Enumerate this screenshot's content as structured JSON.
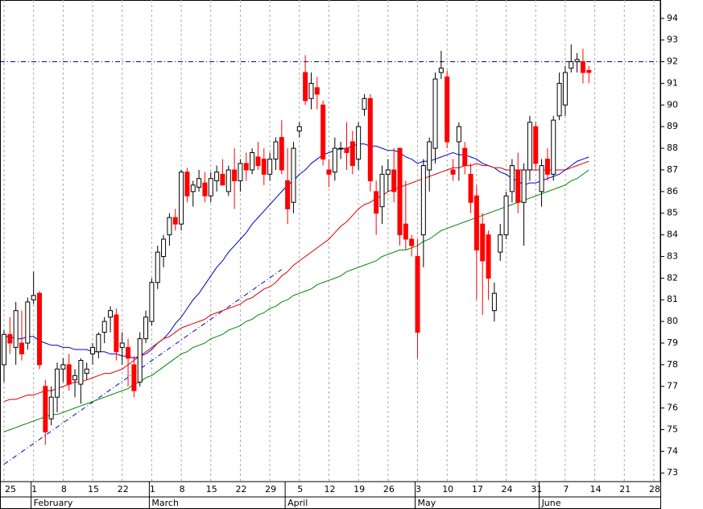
{
  "chart_data": {
    "type": "candlestick",
    "categories": [
      "25",
      null,
      null,
      null,
      null,
      "1",
      null,
      null,
      null,
      null,
      "8",
      null,
      null,
      null,
      null,
      "15",
      null,
      null,
      null,
      null,
      "22",
      null,
      null,
      null,
      null,
      "1",
      null,
      null,
      null,
      null,
      "8",
      null,
      null,
      null,
      null,
      "15",
      null,
      null,
      null,
      null,
      "22",
      null,
      null,
      null,
      null,
      "29",
      null,
      null,
      null,
      null,
      "5",
      null,
      null,
      null,
      null,
      "12",
      null,
      null,
      null,
      null,
      "19",
      null,
      null,
      null,
      null,
      "26",
      null,
      null,
      null,
      null,
      "3",
      null,
      null,
      null,
      null,
      "10",
      null,
      null,
      null,
      null,
      "17",
      null,
      null,
      null,
      null,
      "24",
      null,
      null,
      null,
      null,
      "31",
      null,
      null,
      null,
      null,
      "7",
      null,
      null,
      null,
      null,
      "14",
      null,
      null,
      null,
      null,
      "21",
      null,
      null,
      null,
      null,
      "28"
    ],
    "months": [
      null,
      null,
      null,
      null,
      null,
      "February",
      null,
      null,
      null,
      null,
      null,
      null,
      null,
      null,
      null,
      null,
      null,
      null,
      null,
      null,
      null,
      null,
      null,
      null,
      null,
      "March",
      null,
      null,
      null,
      null,
      null,
      null,
      null,
      null,
      null,
      null,
      null,
      null,
      null,
      null,
      null,
      null,
      null,
      null,
      null,
      null,
      null,
      null,
      "April",
      null,
      null,
      null,
      null,
      null,
      null,
      null,
      null,
      null,
      null,
      null,
      null,
      null,
      null,
      null,
      null,
      null,
      null,
      null,
      null,
      null,
      "May",
      null,
      null,
      null,
      null,
      null,
      null,
      null,
      null,
      null,
      null,
      null,
      null,
      null,
      null,
      null,
      null,
      null,
      null,
      null,
      null,
      "June",
      null,
      null,
      null,
      null,
      null,
      null,
      null,
      null,
      null,
      null,
      null,
      null,
      null,
      null,
      null,
      null,
      null,
      null,
      null
    ],
    "open": [
      78,
      79.4,
      78.8,
      79,
      79.0,
      81,
      81.3,
      77.0,
      75.5,
      76.5,
      77.8,
      78.0,
      77.3,
      77.1,
      77.6,
      78.5,
      78.6,
      79.5,
      80.2,
      80.3,
      78.8,
      78.8,
      78.0,
      77.2,
      79.2,
      80.0,
      81.8,
      83.0,
      84.0,
      84.8,
      84.5,
      86.9,
      86.0,
      86.2,
      86.4,
      85.8,
      86.5,
      86.8,
      86.0,
      87.0,
      86.5,
      87.3,
      87.0,
      87.6,
      87.5,
      86.8,
      87.5,
      88.5,
      86.5,
      85.5,
      88.8,
      91.5,
      90.3,
      90.8,
      90.0,
      87.0,
      86.9,
      88.0,
      88.0,
      88.3,
      87.5,
      89.8,
      90.3,
      86.0,
      85.3,
      86.8,
      87.0,
      88.0,
      84.5,
      83.8,
      83.0,
      84.0,
      87.0,
      88.0,
      91.5,
      91.3,
      87.0,
      88.3,
      88.0,
      86.8,
      85.8,
      84.5,
      84.0,
      80.5,
      83.2,
      84.0,
      86.0,
      87.0,
      85.5,
      87.0,
      89.0,
      86.0,
      87.5,
      86.8,
      89.5,
      90.0,
      91.7,
      92.0,
      92.0,
      91.6,
      null,
      null,
      null,
      null,
      null,
      null,
      null,
      null,
      null,
      null,
      null
    ],
    "high": [
      79.6,
      80.2,
      80.9,
      80.5,
      81.1,
      82.3,
      81.4,
      77.3,
      77.0,
      78.1,
      78.3,
      78.5,
      77.8,
      78.3,
      78.1,
      79.0,
      79.5,
      80.2,
      80.7,
      80.6,
      79.5,
      79.2,
      78.4,
      79.5,
      80.5,
      82.0,
      83.5,
      84.0,
      85.0,
      85.2,
      87.0,
      87.1,
      86.5,
      87.0,
      86.9,
      86.9,
      87.2,
      87.5,
      87.2,
      88.0,
      87.5,
      87.8,
      88.0,
      88.3,
      88.0,
      87.8,
      88.5,
      89.3,
      88.0,
      88.3,
      89.2,
      92.3,
      91.5,
      91.3,
      90.2,
      87.5,
      88.5,
      88.3,
      89.2,
      88.8,
      89.2,
      90.5,
      90.5,
      86.5,
      87.2,
      87.5,
      88.0,
      88.0,
      86.5,
      84.0,
      83.8,
      87.5,
      88.5,
      91.5,
      92.5,
      91.6,
      87.5,
      89.2,
      88.3,
      87.3,
      86.3,
      85.0,
      84.2,
      81.8,
      84.5,
      86.0,
      87.5,
      87.8,
      87.3,
      89.5,
      89.2,
      87.5,
      88.0,
      89.5,
      91.5,
      91.8,
      92.8,
      92.4,
      92.6,
      91.8,
      null,
      null,
      null,
      null,
      null,
      null,
      null,
      null,
      null,
      null,
      null
    ],
    "low": [
      77.2,
      78.5,
      78.0,
      78.2,
      78.7,
      80.8,
      77.8,
      74.3,
      75.2,
      75.8,
      77.2,
      76.8,
      76.5,
      76.2,
      77.3,
      78.0,
      78.3,
      79.0,
      79.5,
      78.2,
      78.0,
      77.0,
      76.5,
      77.0,
      79.0,
      79.8,
      81.5,
      82.5,
      83.5,
      84.2,
      84.2,
      85.5,
      85.3,
      86.0,
      85.5,
      85.5,
      86.0,
      86.3,
      85.8,
      85.2,
      86.0,
      86.5,
      86.8,
      87.0,
      86.3,
      86.5,
      87.0,
      86.8,
      84.5,
      85.0,
      88.5,
      90.0,
      89.8,
      89.8,
      87.2,
      86.2,
      86.5,
      87.5,
      87.0,
      86.8,
      87.0,
      89.5,
      86.0,
      84.0,
      84.5,
      86.0,
      85.5,
      83.5,
      83.3,
      83.0,
      78.3,
      82.5,
      86.0,
      87.3,
      91.2,
      88.0,
      86.5,
      86.5,
      86.8,
      85.0,
      81.0,
      80.3,
      81.0,
      80.0,
      82.8,
      83.8,
      85.5,
      85.0,
      83.5,
      86.5,
      87.0,
      85.3,
      86.5,
      86.5,
      89.3,
      89.5,
      91.5,
      91.5,
      91.0,
      91.0,
      null,
      null,
      null,
      null,
      null,
      null,
      null,
      null,
      null,
      null,
      null
    ],
    "close": [
      79.4,
      79.0,
      80.5,
      78.5,
      80.9,
      81.2,
      78.0,
      74.9,
      76.5,
      77.8,
      78.0,
      77.1,
      77.5,
      78.2,
      77.8,
      78.8,
      79.4,
      80.0,
      80.5,
      78.6,
      79.0,
      78.3,
      76.8,
      79.2,
      80.2,
      81.8,
      83.2,
      83.8,
      84.8,
      84.5,
      86.9,
      85.8,
      86.3,
      86.6,
      85.8,
      86.6,
      86.9,
      86.3,
      87.0,
      86.5,
      87.3,
      87.0,
      87.8,
      87.2,
      86.8,
      87.5,
      88.3,
      87.0,
      85.2,
      88.0,
      89.0,
      90.2,
      91.0,
      90.5,
      87.5,
      86.8,
      88.0,
      88.0,
      87.8,
      87.2,
      89.0,
      90.3,
      86.5,
      85.0,
      86.8,
      87.0,
      86.0,
      84.0,
      83.8,
      83.5,
      79.5,
      87.2,
      88.3,
      91.2,
      91.7,
      88.3,
      86.8,
      89.0,
      87.2,
      85.5,
      83.3,
      82.8,
      82.0,
      81.3,
      84.0,
      85.8,
      87.2,
      85.5,
      87.0,
      89.2,
      87.3,
      87.2,
      86.8,
      89.3,
      91.0,
      91.5,
      92.0,
      92.1,
      91.5,
      91.5,
      null,
      null,
      null,
      null,
      null,
      null,
      null,
      null,
      null,
      null,
      null
    ],
    "up_color": "#ffffff",
    "down_color": "#ff0000",
    "lines": [
      {
        "color": "#0000cc",
        "values": [
          79.3,
          79.3,
          79.2,
          79.2,
          79.3,
          79.3,
          79.1,
          79.0,
          78.9,
          78.9,
          78.8,
          78.8,
          78.7,
          78.7,
          78.7,
          78.6,
          78.6,
          78.6,
          78.5,
          78.5,
          78.4,
          78.4,
          78.3,
          78.4,
          78.5,
          78.7,
          79.0,
          79.2,
          79.5,
          79.9,
          80.2,
          80.6,
          81.0,
          81.3,
          81.7,
          82.1,
          82.5,
          82.8,
          83.2,
          83.5,
          83.8,
          84.1,
          84.5,
          84.8,
          85.1,
          85.4,
          85.7,
          86.0,
          86.3,
          86.5,
          86.8,
          87.0,
          87.3,
          87.5,
          87.7,
          87.8,
          87.9,
          88.0,
          88.0,
          88.1,
          88.2,
          88.2,
          88.1,
          88.1,
          88.0,
          87.9,
          87.9,
          87.8,
          87.6,
          87.5,
          87.3,
          87.4,
          87.4,
          87.5,
          87.6,
          87.7,
          87.8,
          87.7,
          87.7,
          87.6,
          87.5,
          87.3,
          87.2,
          87.1,
          86.9,
          86.8,
          86.6,
          86.5,
          86.3,
          86.4,
          86.4,
          86.5,
          86.6,
          86.7,
          86.8,
          87.0,
          87.2,
          87.4,
          87.5,
          87.6,
          null,
          null,
          null,
          null,
          null,
          null,
          null,
          null,
          null,
          null,
          null
        ]
      },
      {
        "color": "#dd0000",
        "values": [
          76.3,
          76.4,
          76.4,
          76.5,
          76.6,
          76.6,
          76.7,
          76.8,
          76.8,
          76.9,
          77.0,
          77.1,
          77.2,
          77.2,
          77.3,
          77.4,
          77.5,
          77.6,
          77.6,
          77.7,
          77.8,
          78.0,
          78.2,
          78.4,
          78.6,
          78.8,
          79.0,
          79.2,
          79.3,
          79.5,
          79.7,
          79.8,
          79.9,
          80.0,
          80.1,
          80.3,
          80.4,
          80.5,
          80.6,
          80.7,
          80.8,
          81.0,
          81.1,
          81.3,
          81.5,
          81.6,
          81.8,
          82.1,
          82.3,
          82.6,
          82.8,
          83.0,
          83.2,
          83.4,
          83.6,
          83.8,
          84.1,
          84.4,
          84.6,
          84.9,
          85.2,
          85.4,
          85.5,
          85.7,
          85.8,
          86.0,
          86.1,
          86.2,
          86.3,
          86.4,
          86.5,
          86.6,
          86.7,
          86.8,
          86.9,
          87.0,
          87.1,
          87.1,
          87.2,
          87.2,
          87.3,
          87.2,
          87.2,
          87.1,
          87.1,
          87.0,
          87.0,
          87.0,
          87.0,
          87.0,
          87.0,
          87.0,
          87.0,
          87.0,
          87.0,
          87.0,
          87.1,
          87.2,
          87.3,
          87.4,
          null,
          null,
          null,
          null,
          null,
          null,
          null,
          null,
          null,
          null,
          null
        ]
      },
      {
        "color": "#008800",
        "values": [
          74.9,
          75.0,
          75.1,
          75.2,
          75.3,
          75.4,
          75.5,
          75.6,
          75.7,
          75.7,
          75.8,
          75.9,
          76.0,
          76.1,
          76.2,
          76.3,
          76.4,
          76.5,
          76.6,
          76.7,
          76.8,
          76.9,
          77.1,
          77.2,
          77.4,
          77.5,
          77.7,
          77.9,
          78.1,
          78.3,
          78.5,
          78.6,
          78.8,
          78.9,
          79.0,
          79.2,
          79.3,
          79.4,
          79.6,
          79.7,
          79.8,
          80.0,
          80.1,
          80.3,
          80.4,
          80.6,
          80.7,
          80.9,
          81.0,
          81.2,
          81.3,
          81.4,
          81.5,
          81.7,
          81.8,
          81.9,
          82.0,
          82.1,
          82.3,
          82.4,
          82.5,
          82.6,
          82.7,
          82.8,
          83.0,
          83.1,
          83.2,
          83.3,
          83.3,
          83.4,
          83.5,
          83.7,
          83.8,
          84.0,
          84.2,
          84.3,
          84.4,
          84.5,
          84.6,
          84.7,
          84.8,
          84.9,
          85.0,
          85.1,
          85.2,
          85.3,
          85.4,
          85.5,
          85.6,
          85.7,
          85.8,
          85.9,
          86.0,
          86.1,
          86.2,
          86.3,
          86.5,
          86.6,
          86.8,
          87.0,
          null,
          null,
          null,
          null,
          null,
          null,
          null,
          null,
          null,
          null,
          null
        ]
      }
    ],
    "hline": 92,
    "trendline": [
      73.4,
      82.4
    ],
    "ylim": [
      72.6,
      94.85
    ],
    "yticks": [
      73,
      74,
      75,
      76,
      77,
      78,
      79,
      80,
      81,
      82,
      83,
      84,
      85,
      86,
      87,
      88,
      89,
      90,
      91,
      92,
      93,
      94
    ],
    "grid": true
  }
}
